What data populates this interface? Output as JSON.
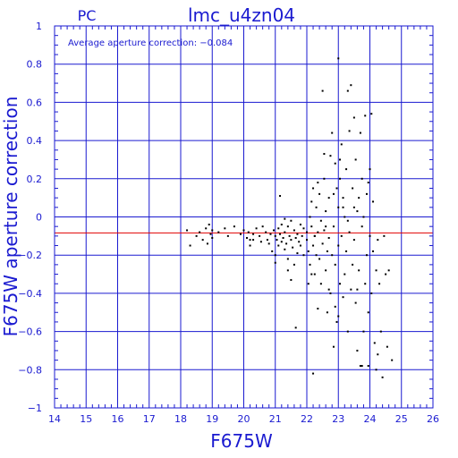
{
  "header": {
    "detector": "PC",
    "dataset": "lmc_u4zn04"
  },
  "annotation": "Average aperture correction: −0.084",
  "colors": {
    "axes": "#1a1ad0",
    "grid": "#1a1ad0",
    "points": "#000000",
    "average_line": "#e00000",
    "background": "#ffffff"
  },
  "chart_data": {
    "type": "scatter",
    "xlabel": "F675W",
    "ylabel": "F675W aperture correction",
    "xlim": [
      14,
      26
    ],
    "ylim": [
      -1,
      1
    ],
    "xticks": [
      14,
      15,
      16,
      17,
      18,
      19,
      20,
      21,
      22,
      23,
      24,
      25,
      26
    ],
    "yticks": [
      -1,
      -0.8,
      -0.6,
      -0.4,
      -0.2,
      0,
      0.2,
      0.4,
      0.6,
      0.8,
      1
    ],
    "ytick_labels": [
      "−1",
      "−0.8",
      "−0.6",
      "−0.4",
      "−0.2",
      "0",
      "0.2",
      "0.4",
      "0.6",
      "0.8",
      "1"
    ],
    "grid": true,
    "reference_line": {
      "y": -0.084
    },
    "points": [
      [
        18.2,
        -0.07
      ],
      [
        18.3,
        -0.15
      ],
      [
        18.5,
        -0.1
      ],
      [
        18.6,
        -0.08
      ],
      [
        18.7,
        -0.12
      ],
      [
        18.8,
        -0.06
      ],
      [
        18.85,
        -0.14
      ],
      [
        18.9,
        -0.04
      ],
      [
        18.95,
        -0.09
      ],
      [
        19.0,
        -0.11
      ],
      [
        19.0,
        -0.07
      ],
      [
        19.2,
        -0.08
      ],
      [
        19.4,
        -0.06
      ],
      [
        19.5,
        -0.1
      ],
      [
        19.7,
        -0.05
      ],
      [
        19.9,
        -0.09
      ],
      [
        20.0,
        -0.07
      ],
      [
        20.1,
        -0.11
      ],
      [
        20.2,
        -0.12
      ],
      [
        20.15,
        -0.08
      ],
      [
        20.2,
        -0.15
      ],
      [
        20.3,
        -0.09
      ],
      [
        20.4,
        -0.06
      ],
      [
        20.5,
        -0.1
      ],
      [
        20.55,
        -0.13
      ],
      [
        20.6,
        -0.05
      ],
      [
        20.7,
        -0.08
      ],
      [
        20.75,
        -0.12
      ],
      [
        20.8,
        -0.14
      ],
      [
        20.85,
        -0.09
      ],
      [
        20.9,
        -0.18
      ],
      [
        20.95,
        -0.07
      ],
      [
        21.0,
        -0.1
      ],
      [
        21.0,
        -0.2
      ],
      [
        21.05,
        -0.12
      ],
      [
        21.1,
        -0.15
      ],
      [
        21.1,
        -0.06
      ],
      [
        21.15,
        -0.09
      ],
      [
        21.2,
        -0.13
      ],
      [
        21.2,
        -0.04
      ],
      [
        21.25,
        -0.11
      ],
      [
        21.3,
        -0.17
      ],
      [
        21.3,
        -0.08
      ],
      [
        21.35,
        -0.14
      ],
      [
        21.4,
        -0.05
      ],
      [
        21.4,
        -0.22
      ],
      [
        21.45,
        -0.1
      ],
      [
        21.5,
        -0.12
      ],
      [
        21.5,
        -0.02
      ],
      [
        21.55,
        -0.16
      ],
      [
        21.6,
        -0.07
      ],
      [
        21.6,
        -0.25
      ],
      [
        21.65,
        -0.11
      ],
      [
        21.7,
        -0.09
      ],
      [
        21.7,
        -0.19
      ],
      [
        21.75,
        -0.13
      ],
      [
        21.8,
        -0.04
      ],
      [
        21.8,
        -0.15
      ],
      [
        21.85,
        -0.1
      ],
      [
        21.9,
        -0.06
      ],
      [
        21.9,
        -0.2
      ],
      [
        21.15,
        0.11
      ],
      [
        21.3,
        -0.01
      ],
      [
        21.4,
        -0.28
      ],
      [
        21.5,
        -0.33
      ],
      [
        21.0,
        -0.24
      ],
      [
        20.3,
        -0.12
      ],
      [
        22.0,
        -0.08
      ],
      [
        22.0,
        -0.12
      ],
      [
        22.05,
        -0.18
      ],
      [
        22.1,
        0.0
      ],
      [
        22.1,
        -0.25
      ],
      [
        22.15,
        0.08
      ],
      [
        22.15,
        -0.05
      ],
      [
        22.2,
        -0.15
      ],
      [
        22.2,
        0.15
      ],
      [
        22.25,
        -0.3
      ],
      [
        22.25,
        -0.1
      ],
      [
        22.3,
        -0.2
      ],
      [
        22.3,
        0.05
      ],
      [
        22.35,
        -0.48
      ],
      [
        22.35,
        -0.08
      ],
      [
        22.4,
        0.12
      ],
      [
        22.4,
        -0.22
      ],
      [
        22.45,
        -0.02
      ],
      [
        22.45,
        -0.35
      ],
      [
        22.5,
        0.66
      ],
      [
        22.5,
        -0.14
      ],
      [
        22.55,
        0.2
      ],
      [
        22.55,
        -0.07
      ],
      [
        22.6,
        -0.28
      ],
      [
        22.6,
        0.03
      ],
      [
        22.65,
        -0.18
      ],
      [
        22.65,
        -0.5
      ],
      [
        22.7,
        0.1
      ],
      [
        22.7,
        -0.11
      ],
      [
        22.75,
        -0.4
      ],
      [
        22.75,
        0.32
      ],
      [
        22.8,
        -0.2
      ],
      [
        22.8,
        0.44
      ],
      [
        22.85,
        -0.05
      ],
      [
        22.85,
        -0.68
      ],
      [
        22.9,
        0.28
      ],
      [
        22.9,
        -0.25
      ],
      [
        22.95,
        0.15
      ],
      [
        22.95,
        -0.55
      ],
      [
        23.0,
        0.83
      ],
      [
        23.0,
        -0.15
      ],
      [
        23.0,
        0.05
      ],
      [
        23.05,
        -0.35
      ],
      [
        23.05,
        0.2
      ],
      [
        23.1,
        -0.1
      ],
      [
        23.1,
        0.38
      ],
      [
        23.15,
        -0.42
      ],
      [
        23.15,
        0.1
      ],
      [
        23.2,
        -0.3
      ],
      [
        23.2,
        0.0
      ],
      [
        23.25,
        0.25
      ],
      [
        23.25,
        -0.18
      ],
      [
        23.3,
        0.66
      ],
      [
        23.3,
        -0.6
      ],
      [
        23.35,
        -0.08
      ],
      [
        23.35,
        0.45
      ],
      [
        23.4,
        0.69
      ],
      [
        23.4,
        -0.38
      ],
      [
        23.45,
        0.15
      ],
      [
        23.45,
        -0.25
      ],
      [
        23.5,
        0.52
      ],
      [
        23.5,
        -0.12
      ],
      [
        23.55,
        0.3
      ],
      [
        23.55,
        -0.45
      ],
      [
        23.6,
        0.03
      ],
      [
        23.6,
        -0.7
      ],
      [
        23.65,
        0.1
      ],
      [
        23.65,
        -0.28
      ],
      [
        23.7,
        0.44
      ],
      [
        23.7,
        -0.78
      ],
      [
        23.75,
        -0.05
      ],
      [
        23.75,
        0.2
      ],
      [
        23.8,
        -0.6
      ],
      [
        23.8,
        0.0
      ],
      [
        23.85,
        -0.35
      ],
      [
        23.85,
        0.53
      ],
      [
        23.9,
        -0.2
      ],
      [
        23.9,
        0.12
      ],
      [
        23.95,
        -0.5
      ],
      [
        23.95,
        -0.78
      ],
      [
        24.0,
        -0.1
      ],
      [
        24.0,
        0.25
      ],
      [
        24.05,
        0.54
      ],
      [
        24.05,
        -0.4
      ],
      [
        24.1,
        -0.18
      ],
      [
        24.1,
        0.08
      ],
      [
        24.15,
        -0.66
      ],
      [
        24.2,
        -0.28
      ],
      [
        24.2,
        -0.8
      ],
      [
        24.25,
        -0.12
      ],
      [
        24.3,
        -0.35
      ],
      [
        24.35,
        -0.6
      ],
      [
        24.4,
        -0.84
      ],
      [
        24.45,
        -0.1
      ],
      [
        24.5,
        -0.3
      ],
      [
        24.55,
        -0.68
      ],
      [
        24.6,
        -0.28
      ],
      [
        24.7,
        -0.75
      ],
      [
        22.2,
        -0.82
      ],
      [
        22.25,
        -0.1
      ],
      [
        22.6,
        -0.05
      ],
      [
        22.7,
        -0.38
      ],
      [
        22.9,
        -0.47
      ],
      [
        23.0,
        -0.52
      ],
      [
        23.05,
        0.3
      ],
      [
        23.3,
        -0.02
      ],
      [
        23.5,
        0.05
      ],
      [
        23.6,
        -0.38
      ],
      [
        23.75,
        -0.78
      ],
      [
        23.95,
        0.18
      ],
      [
        24.25,
        -0.72
      ],
      [
        21.65,
        -0.58
      ],
      [
        22.05,
        -0.35
      ],
      [
        22.15,
        -0.3
      ],
      [
        22.35,
        0.18
      ],
      [
        22.55,
        0.33
      ],
      [
        22.85,
        0.12
      ],
      [
        23.15,
        0.05
      ]
    ]
  }
}
